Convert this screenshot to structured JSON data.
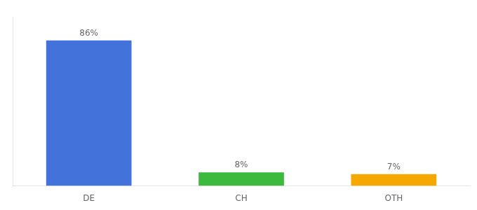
{
  "chart_data": {
    "type": "bar",
    "categories": [
      "DE",
      "CH",
      "OTH"
    ],
    "values": [
      86,
      8,
      7
    ],
    "value_labels": [
      "86%",
      "8%",
      "7%"
    ],
    "colors": [
      "#4472db",
      "#3dba3d",
      "#f5a800"
    ],
    "ylim": [
      0,
      100
    ],
    "yticks": [],
    "data_labels": true,
    "tick_labels": "x",
    "grid": false
  }
}
